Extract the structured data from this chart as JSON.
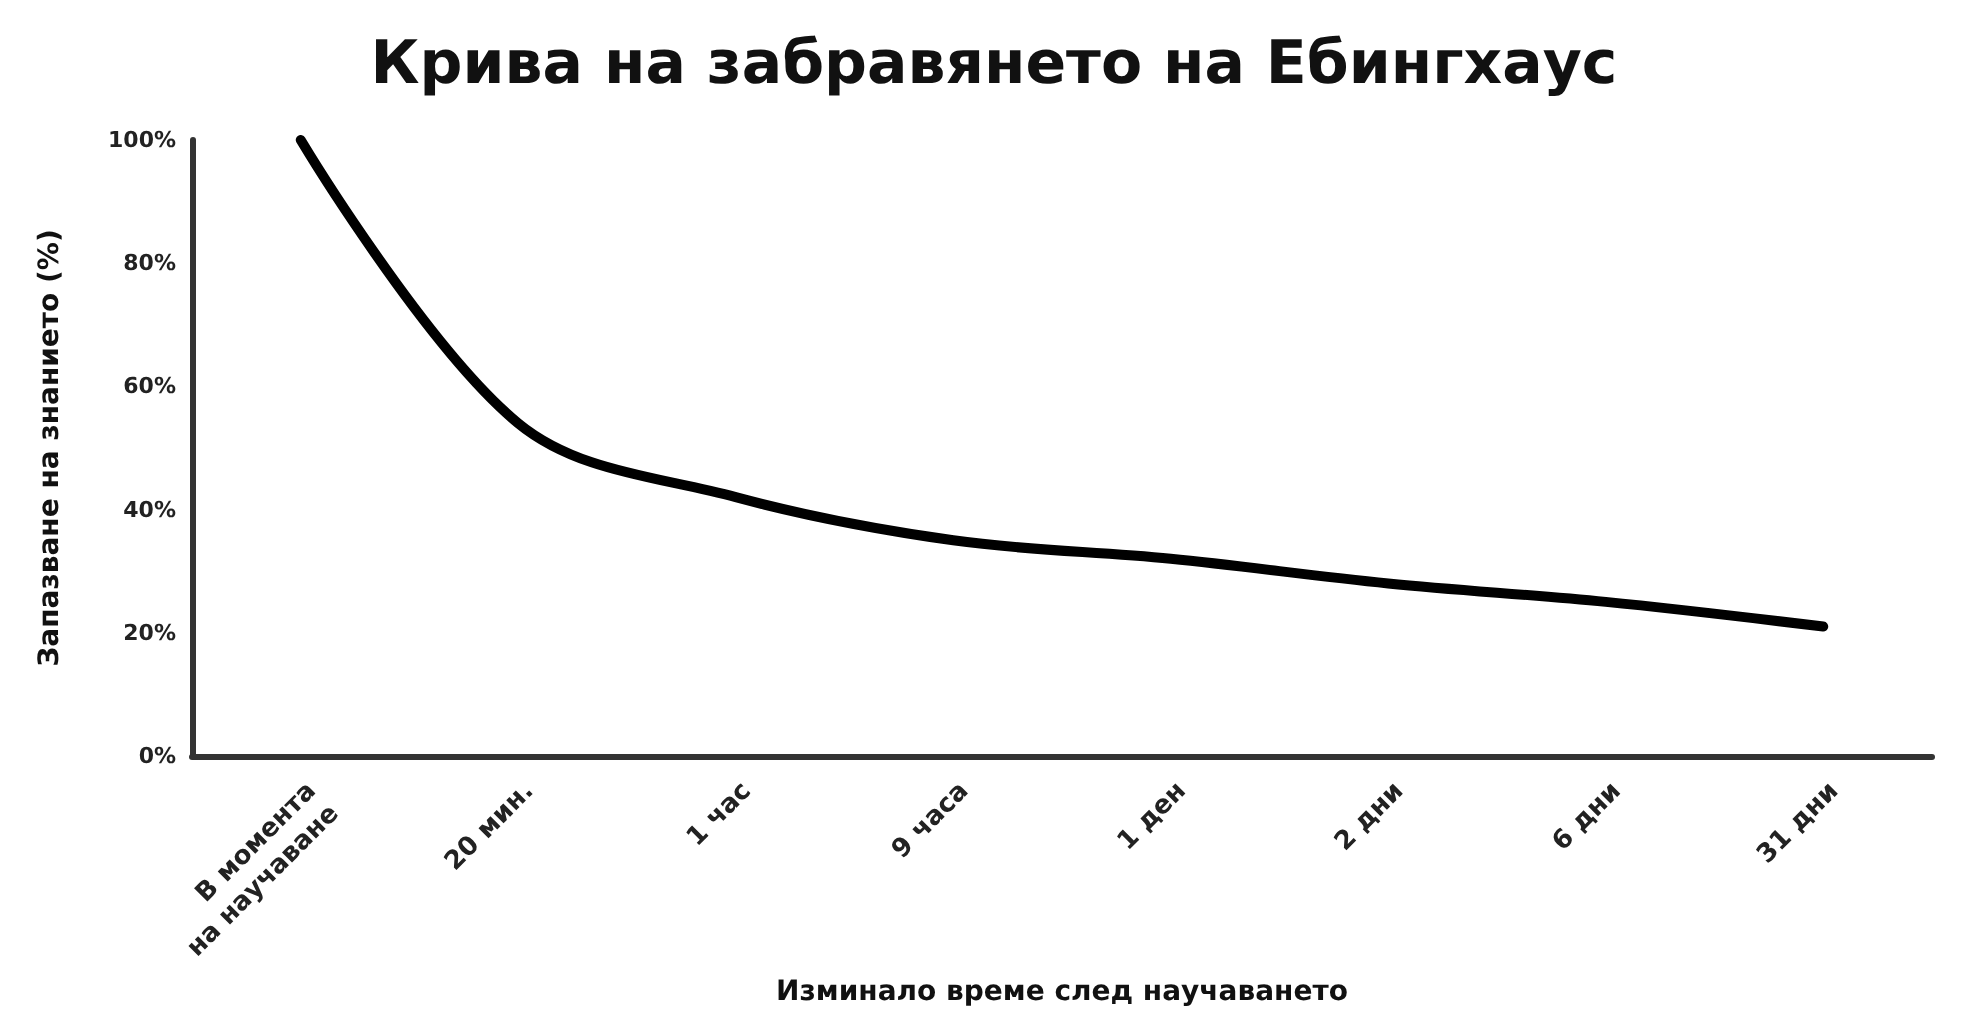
{
  "chart_data": {
    "type": "line",
    "title": "Крива на забравянето на Ебингхаус",
    "xlabel": "Изминало време след научаването",
    "ylabel": "Запазване на знанието (%)",
    "categories": [
      "В момента\nна научаване",
      "20 мин.",
      "1 час",
      "9 часа",
      "1 ден",
      "2 дни",
      "6 дни",
      "31 дни"
    ],
    "series": [
      {
        "color": "#000000",
        "values": [
          100,
          54,
          42,
          35,
          32,
          28,
          25,
          21
        ]
      }
    ],
    "ylim": [
      0,
      100
    ],
    "yticks": [
      {
        "value": 0,
        "label": "0%"
      },
      {
        "value": 20,
        "label": "20%"
      },
      {
        "value": 40,
        "label": "40%"
      },
      {
        "value": 60,
        "label": "60%"
      },
      {
        "value": 80,
        "label": "80%"
      },
      {
        "value": 100,
        "label": "100%"
      }
    ],
    "grid": false,
    "marker": "none",
    "line_style": "solid"
  }
}
